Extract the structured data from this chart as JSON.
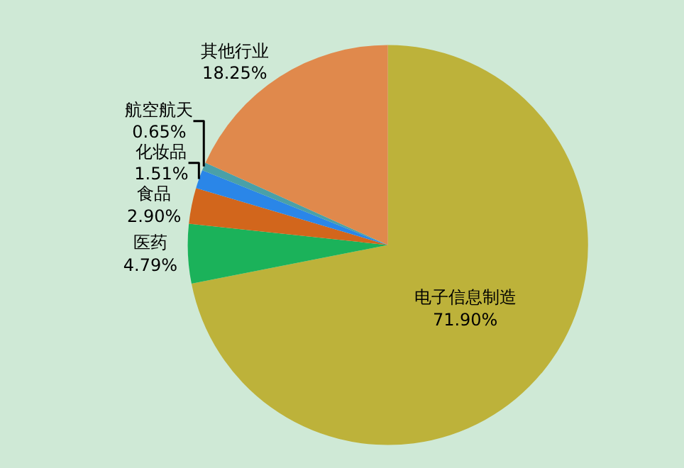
{
  "chart_data": {
    "type": "pie",
    "categories": [
      "电子信息制造",
      "医药",
      "食品",
      "化妆品",
      "航空航天",
      "其他行业"
    ],
    "values": [
      71.9,
      4.79,
      2.9,
      1.51,
      0.65,
      18.25
    ],
    "value_labels": [
      "71.90%",
      "4.79%",
      "2.90%",
      "1.51%",
      "0.65%",
      "18.25%"
    ],
    "colors": [
      "#bdb23a",
      "#1bb25a",
      "#d2661c",
      "#2a86e8",
      "#4aa0a8",
      "#e0894c"
    ],
    "legend": false
  }
}
